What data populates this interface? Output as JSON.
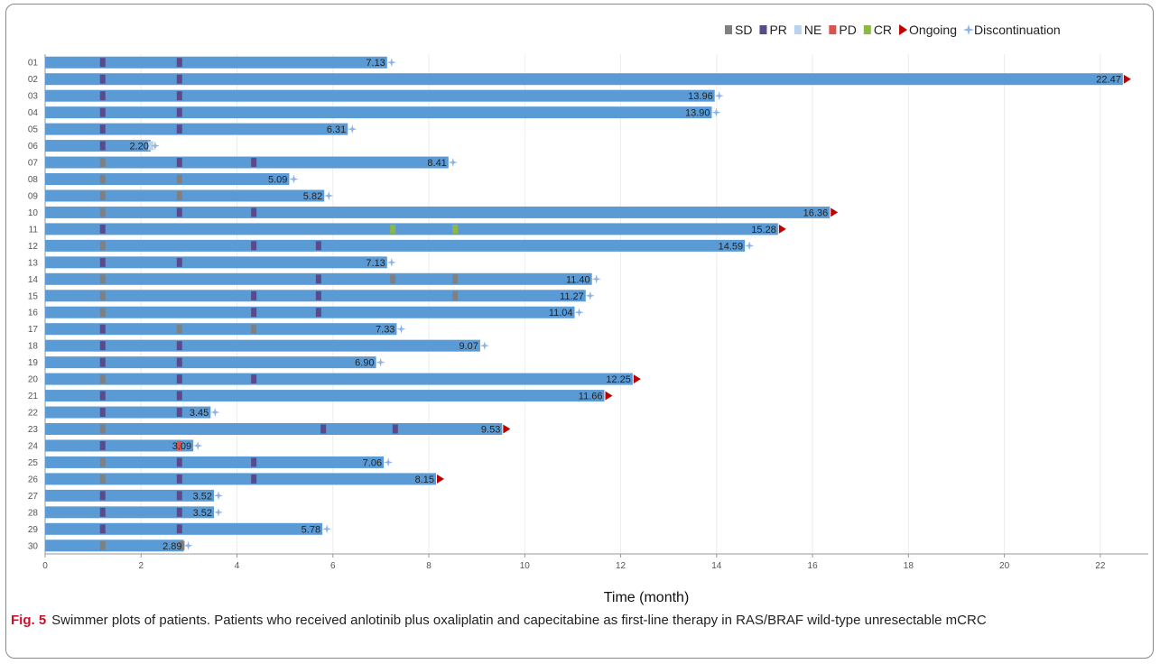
{
  "caption": {
    "label": "Fig. 5",
    "text": "Swimmer plots of patients. Patients who received anlotinib plus oxaliplatin and capecitabine as first-line therapy in RAS/BRAF wild-type unresectable mCRC"
  },
  "chart_data": {
    "type": "bar",
    "orientation": "horizontal",
    "chart_kind": "swimmer",
    "xlabel": "Time (month)",
    "ylabel": "",
    "xlim": [
      0,
      23
    ],
    "xticks": [
      0,
      2,
      4,
      6,
      8,
      10,
      12,
      14,
      16,
      18,
      20,
      22
    ],
    "grid": "vertical",
    "legend_position": "top-right",
    "legend": [
      {
        "key": "SD",
        "label": "SD",
        "color": "#808080",
        "symbol": "square"
      },
      {
        "key": "PR",
        "label": "PR",
        "color": "#5b4a8b",
        "symbol": "square"
      },
      {
        "key": "NE",
        "label": "NE",
        "color": "#b9d3ee",
        "symbol": "square"
      },
      {
        "key": "PD",
        "label": "PD",
        "color": "#d9534f",
        "symbol": "square"
      },
      {
        "key": "CR",
        "label": "CR",
        "color": "#8db842",
        "symbol": "square"
      },
      {
        "key": "Ongoing",
        "label": "Ongoing",
        "color": "#c00000",
        "symbol": "triangle"
      },
      {
        "key": "Discontinuation",
        "label": "Discontinuation",
        "color": "#8fb3e6",
        "symbol": "star"
      }
    ],
    "bar_color": "#5b9bd5",
    "patients": [
      {
        "id": "01",
        "duration": 7.13,
        "label": "7.13",
        "status": "Discontinuation",
        "events": [
          [
            "PR",
            1.2
          ],
          [
            "PR",
            2.8
          ]
        ]
      },
      {
        "id": "02",
        "duration": 22.47,
        "label": "22.47",
        "status": "Ongoing",
        "events": [
          [
            "PR",
            1.2
          ],
          [
            "PR",
            2.8
          ]
        ]
      },
      {
        "id": "03",
        "duration": 13.96,
        "label": "13.96",
        "status": "Discontinuation",
        "events": [
          [
            "PR",
            1.2
          ],
          [
            "PR",
            2.8
          ]
        ]
      },
      {
        "id": "04",
        "duration": 13.9,
        "label": "13.90",
        "status": "Discontinuation",
        "events": [
          [
            "PR",
            1.2
          ],
          [
            "PR",
            2.8
          ]
        ]
      },
      {
        "id": "05",
        "duration": 6.31,
        "label": "6.31",
        "status": "Discontinuation",
        "events": [
          [
            "PR",
            1.2
          ],
          [
            "PR",
            2.8
          ]
        ]
      },
      {
        "id": "06",
        "duration": 2.2,
        "label": "2.20",
        "status": "Discontinuation",
        "events": [
          [
            "PR",
            1.2
          ],
          [
            "NE",
            2.2
          ]
        ]
      },
      {
        "id": "07",
        "duration": 8.41,
        "label": "8.41",
        "status": "Discontinuation",
        "events": [
          [
            "SD",
            1.2
          ],
          [
            "PR",
            2.8
          ],
          [
            "PR",
            4.35
          ]
        ]
      },
      {
        "id": "08",
        "duration": 5.09,
        "label": "5.09",
        "status": "Discontinuation",
        "events": [
          [
            "SD",
            1.2
          ],
          [
            "SD",
            2.8
          ]
        ]
      },
      {
        "id": "09",
        "duration": 5.82,
        "label": "5.82",
        "status": "Discontinuation",
        "events": [
          [
            "SD",
            1.2
          ],
          [
            "SD",
            2.8
          ]
        ]
      },
      {
        "id": "10",
        "duration": 16.36,
        "label": "16.36",
        "status": "Ongoing",
        "events": [
          [
            "SD",
            1.2
          ],
          [
            "PR",
            2.8
          ],
          [
            "PR",
            4.35
          ]
        ]
      },
      {
        "id": "11",
        "duration": 15.28,
        "label": "15.28",
        "status": "Ongoing",
        "events": [
          [
            "PR",
            1.2
          ],
          [
            "CR",
            7.25
          ],
          [
            "CR",
            8.55
          ]
        ]
      },
      {
        "id": "12",
        "duration": 14.59,
        "label": "14.59",
        "status": "Discontinuation",
        "events": [
          [
            "SD",
            1.2
          ],
          [
            "PR",
            4.35
          ],
          [
            "PR",
            5.7
          ]
        ]
      },
      {
        "id": "13",
        "duration": 7.13,
        "label": "7.13",
        "status": "Discontinuation",
        "events": [
          [
            "PR",
            1.2
          ],
          [
            "PR",
            2.8
          ]
        ]
      },
      {
        "id": "14",
        "duration": 11.4,
        "label": "11.40",
        "status": "Discontinuation",
        "events": [
          [
            "SD",
            1.2
          ],
          [
            "PR",
            5.7
          ],
          [
            "SD",
            7.25
          ],
          [
            "SD",
            8.55
          ]
        ]
      },
      {
        "id": "15",
        "duration": 11.27,
        "label": "11.27",
        "status": "Discontinuation",
        "events": [
          [
            "SD",
            1.2
          ],
          [
            "PR",
            4.35
          ],
          [
            "PR",
            5.7
          ],
          [
            "SD",
            8.55
          ]
        ]
      },
      {
        "id": "16",
        "duration": 11.04,
        "label": "11.04",
        "status": "Discontinuation",
        "events": [
          [
            "SD",
            1.2
          ],
          [
            "PR",
            4.35
          ],
          [
            "PR",
            5.7
          ]
        ]
      },
      {
        "id": "17",
        "duration": 7.33,
        "label": "7.33",
        "status": "Discontinuation",
        "events": [
          [
            "PR",
            1.2
          ],
          [
            "SD",
            2.8
          ],
          [
            "SD",
            4.35
          ]
        ]
      },
      {
        "id": "18",
        "duration": 9.07,
        "label": "9.07",
        "status": "Discontinuation",
        "events": [
          [
            "PR",
            1.2
          ],
          [
            "PR",
            2.8
          ]
        ]
      },
      {
        "id": "19",
        "duration": 6.9,
        "label": "6.90",
        "status": "Discontinuation",
        "events": [
          [
            "PR",
            1.2
          ],
          [
            "PR",
            2.8
          ]
        ]
      },
      {
        "id": "20",
        "duration": 12.25,
        "label": "12.25",
        "status": "Ongoing",
        "events": [
          [
            "SD",
            1.2
          ],
          [
            "PR",
            2.8
          ],
          [
            "PR",
            4.35
          ]
        ]
      },
      {
        "id": "21",
        "duration": 11.66,
        "label": "11.66",
        "status": "Ongoing",
        "events": [
          [
            "PR",
            1.2
          ],
          [
            "PR",
            2.8
          ]
        ]
      },
      {
        "id": "22",
        "duration": 3.45,
        "label": "3.45",
        "status": "Discontinuation",
        "events": [
          [
            "PR",
            1.2
          ],
          [
            "PR",
            2.8
          ]
        ]
      },
      {
        "id": "23",
        "duration": 9.53,
        "label": "9.53",
        "status": "Ongoing",
        "events": [
          [
            "SD",
            1.2
          ],
          [
            "PR",
            5.8
          ],
          [
            "PR",
            7.3
          ]
        ]
      },
      {
        "id": "24",
        "duration": 3.09,
        "label": "3.09",
        "status": "Discontinuation",
        "events": [
          [
            "PR",
            1.2
          ],
          [
            "PD",
            2.8
          ]
        ]
      },
      {
        "id": "25",
        "duration": 7.06,
        "label": "7.06",
        "status": "Discontinuation",
        "events": [
          [
            "SD",
            1.2
          ],
          [
            "PR",
            2.8
          ],
          [
            "PR",
            4.35
          ]
        ]
      },
      {
        "id": "26",
        "duration": 8.15,
        "label": "8.15",
        "status": "Ongoing",
        "events": [
          [
            "SD",
            1.2
          ],
          [
            "PR",
            2.8
          ],
          [
            "PR",
            4.35
          ]
        ]
      },
      {
        "id": "27",
        "duration": 3.52,
        "label": "3.52",
        "status": "Discontinuation",
        "events": [
          [
            "PR",
            1.2
          ],
          [
            "PR",
            2.8
          ]
        ]
      },
      {
        "id": "28",
        "duration": 3.52,
        "label": "3.52",
        "status": "Discontinuation",
        "events": [
          [
            "PR",
            1.2
          ],
          [
            "PR",
            2.8
          ]
        ]
      },
      {
        "id": "29",
        "duration": 5.78,
        "label": "5.78",
        "status": "Discontinuation",
        "events": [
          [
            "PR",
            1.2
          ],
          [
            "PR",
            2.8
          ]
        ]
      },
      {
        "id": "30",
        "duration": 2.89,
        "label": "2.89",
        "status": "Discontinuation",
        "events": [
          [
            "SD",
            1.2
          ],
          [
            "SD",
            2.85
          ]
        ]
      }
    ]
  }
}
